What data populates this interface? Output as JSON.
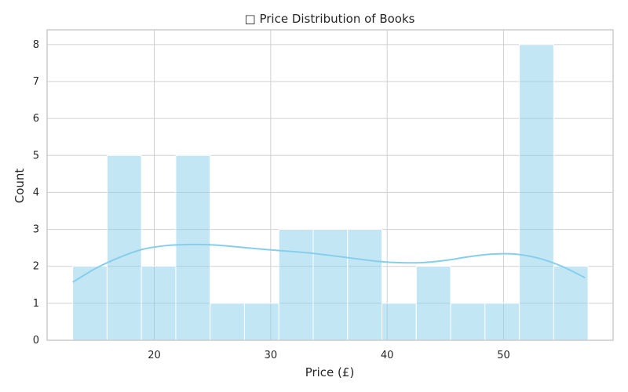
{
  "chart_data": {
    "type": "bar",
    "title": "□ Price Distribution of Books",
    "xlabel": "Price (£)",
    "ylabel": "Count",
    "xlim": [
      10.8,
      59.4
    ],
    "ylim": [
      0,
      8.4
    ],
    "xticks": [
      20,
      30,
      40,
      50
    ],
    "yticks": [
      0,
      1,
      2,
      3,
      4,
      5,
      6,
      7,
      8
    ],
    "grid": true,
    "bars": [
      {
        "x0": 13.0,
        "x1": 15.95,
        "value": 2
      },
      {
        "x0": 15.95,
        "x1": 18.9,
        "value": 5
      },
      {
        "x0": 18.9,
        "x1": 21.85,
        "value": 2
      },
      {
        "x0": 21.85,
        "x1": 24.8,
        "value": 5
      },
      {
        "x0": 24.8,
        "x1": 27.75,
        "value": 1
      },
      {
        "x0": 27.75,
        "x1": 30.7,
        "value": 1
      },
      {
        "x0": 30.7,
        "x1": 33.65,
        "value": 3
      },
      {
        "x0": 33.65,
        "x1": 36.6,
        "value": 3
      },
      {
        "x0": 36.6,
        "x1": 39.55,
        "value": 3
      },
      {
        "x0": 39.55,
        "x1": 42.5,
        "value": 1
      },
      {
        "x0": 42.5,
        "x1": 45.45,
        "value": 2
      },
      {
        "x0": 45.45,
        "x1": 48.4,
        "value": 1
      },
      {
        "x0": 48.4,
        "x1": 51.35,
        "value": 1
      },
      {
        "x0": 51.35,
        "x1": 54.3,
        "value": 8
      },
      {
        "x0": 54.3,
        "x1": 57.25,
        "value": 2
      }
    ],
    "kde": {
      "x": [
        13.0,
        15.0,
        17.0,
        19.0,
        21.0,
        23.0,
        25.0,
        27.0,
        29.0,
        31.0,
        33.0,
        35.0,
        37.0,
        39.0,
        41.0,
        43.0,
        45.0,
        47.0,
        49.0,
        51.0,
        53.0,
        55.0,
        57.0
      ],
      "y": [
        1.57,
        1.95,
        2.24,
        2.46,
        2.56,
        2.59,
        2.58,
        2.53,
        2.47,
        2.42,
        2.37,
        2.3,
        2.22,
        2.14,
        2.1,
        2.1,
        2.16,
        2.26,
        2.33,
        2.33,
        2.22,
        2.0,
        1.69
      ]
    },
    "colors": {
      "bar_fill": "#87ceeb",
      "bar_opacity": 0.5,
      "bar_stroke": "#ffffff",
      "kde_line": "#87ceeb",
      "grid": "#d0d0d0",
      "axes": "#cccccc"
    }
  }
}
